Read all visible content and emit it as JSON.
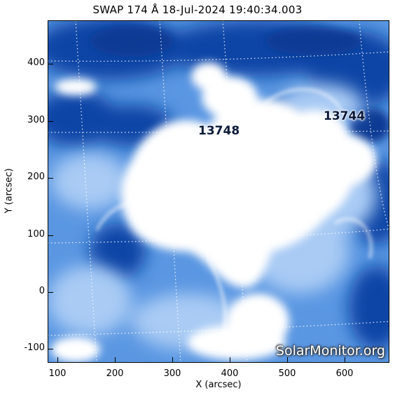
{
  "title": "SWAP 174 Å 18-Jul-2024 19:40:34.003",
  "axes": {
    "xlabel": "X (arcsec)",
    "ylabel": "Y (arcsec)",
    "xticks": [
      "100",
      "200",
      "300",
      "400",
      "500",
      "600"
    ],
    "yticks": [
      "400",
      "300",
      "200",
      "100",
      "0",
      "-100"
    ]
  },
  "active_regions": [
    {
      "label": "13748"
    },
    {
      "label": "13744"
    }
  ],
  "watermark": "SolarMonitor.org",
  "colors": {
    "dark_blue": "#0a3f9c",
    "mid_blue": "#3f7fd6",
    "light_blue": "#9fc4f2",
    "bright": "#ffffff"
  }
}
